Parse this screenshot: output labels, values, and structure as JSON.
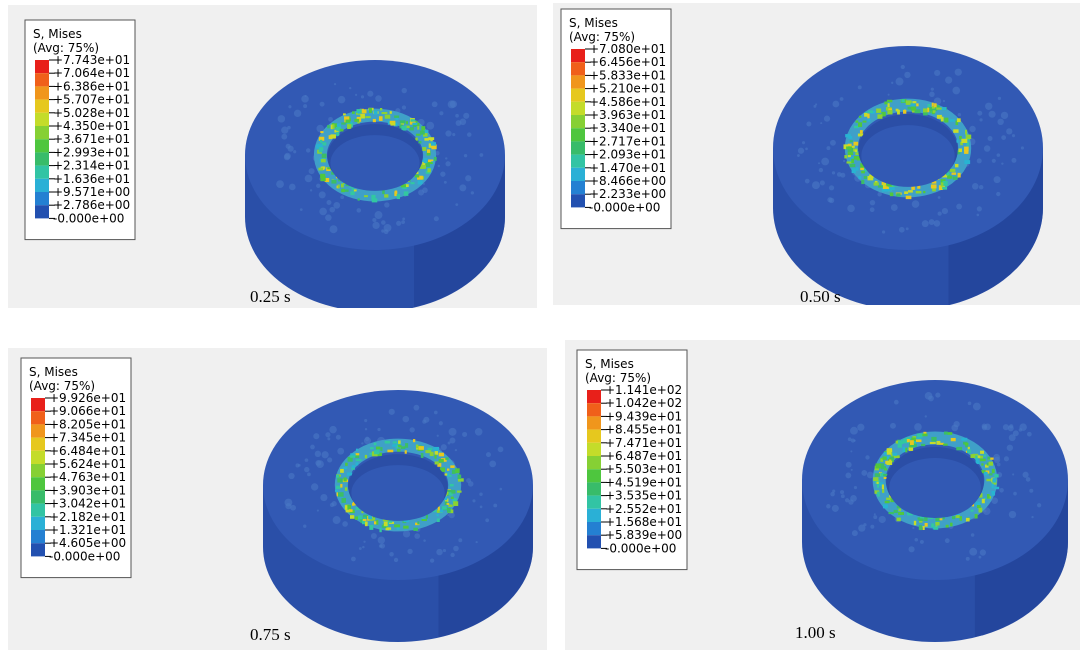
{
  "panels": [
    {
      "legend_title": "S, Mises",
      "legend_subtitle": "(Avg: 75%)",
      "legend_labels": [
        "+7.743e+01",
        "+7.064e+01",
        "+6.386e+01",
        "+5.707e+01",
        "+5.028e+01",
        "+4.350e+01",
        "+3.671e+01",
        "+2.993e+01",
        "+2.314e+01",
        "+1.636e+01",
        "+9.571e+00",
        "+2.786e+00",
        "-0.000e+00"
      ],
      "caption": "0.25 s"
    },
    {
      "legend_title": "S, Mises",
      "legend_subtitle": "(Avg: 75%)",
      "legend_labels": [
        "+7.080e+01",
        "+6.456e+01",
        "+5.833e+01",
        "+5.210e+01",
        "+4.586e+01",
        "+3.963e+01",
        "+3.340e+01",
        "+2.717e+01",
        "+2.093e+01",
        "+1.470e+01",
        "+8.466e+00",
        "+2.233e+00",
        "-0.000e+00"
      ],
      "caption": "0.50 s"
    },
    {
      "legend_title": "S, Mises",
      "legend_subtitle": "(Avg: 75%)",
      "legend_labels": [
        "+9.926e+01",
        "+9.066e+01",
        "+8.205e+01",
        "+7.345e+01",
        "+6.484e+01",
        "+5.624e+01",
        "+4.763e+01",
        "+3.903e+01",
        "+3.042e+01",
        "+2.182e+01",
        "+1.321e+01",
        "+4.605e+00",
        "-0.000e+00"
      ],
      "caption": "0.75 s"
    },
    {
      "legend_title": "S, Mises",
      "legend_subtitle": "(Avg: 75%)",
      "legend_labels": [
        "+1.141e+02",
        "+1.042e+02",
        "+9.439e+01",
        "+8.455e+01",
        "+7.471e+01",
        "+6.487e+01",
        "+5.503e+01",
        "+4.519e+01",
        "+3.535e+01",
        "+2.552e+01",
        "+1.568e+01",
        "+5.839e+00",
        "-0.000e+00"
      ],
      "caption": "1.00 s"
    }
  ]
}
